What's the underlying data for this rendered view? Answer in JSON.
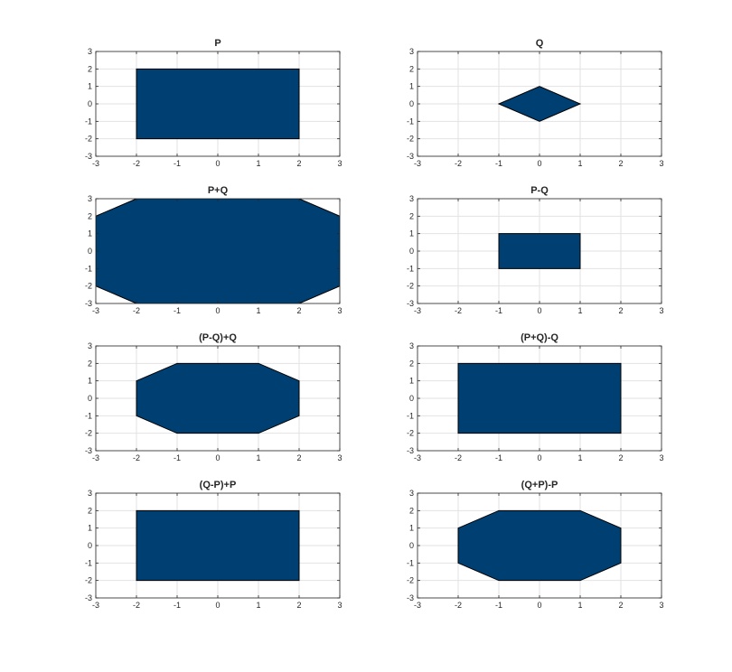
{
  "figure": {
    "background_color": "#ffffff",
    "fill_color": "#003f72",
    "edge_color": "#000000",
    "grid_color": "#e2e2e2",
    "axis_color": "#262626"
  },
  "chart_data": [
    {
      "type": "area",
      "title": "P",
      "xlim": [
        -3,
        3
      ],
      "ylim": [
        -3,
        3
      ],
      "xticks": [
        -3,
        -2,
        -1,
        0,
        1,
        2,
        3
      ],
      "yticks": [
        -3,
        -2,
        -1,
        0,
        1,
        2,
        3
      ],
      "grid": true,
      "polygon": [
        [
          -2,
          -2
        ],
        [
          2,
          -2
        ],
        [
          2,
          2
        ],
        [
          -2,
          2
        ]
      ]
    },
    {
      "type": "area",
      "title": "Q",
      "xlim": [
        -3,
        3
      ],
      "ylim": [
        -3,
        3
      ],
      "xticks": [
        -3,
        -2,
        -1,
        0,
        1,
        2,
        3
      ],
      "yticks": [
        -3,
        -2,
        -1,
        0,
        1,
        2,
        3
      ],
      "grid": true,
      "polygon": [
        [
          -1,
          0
        ],
        [
          0,
          -1
        ],
        [
          1,
          0
        ],
        [
          0,
          1
        ]
      ]
    },
    {
      "type": "area",
      "title": "P+Q",
      "xlim": [
        -3,
        3
      ],
      "ylim": [
        -3,
        3
      ],
      "xticks": [
        -3,
        -2,
        -1,
        0,
        1,
        2,
        3
      ],
      "yticks": [
        -3,
        -2,
        -1,
        0,
        1,
        2,
        3
      ],
      "grid": true,
      "polygon": [
        [
          -3,
          -2
        ],
        [
          -2,
          -3
        ],
        [
          2,
          -3
        ],
        [
          3,
          -2
        ],
        [
          3,
          2
        ],
        [
          2,
          3
        ],
        [
          -2,
          3
        ],
        [
          -3,
          2
        ]
      ]
    },
    {
      "type": "area",
      "title": "P-Q",
      "xlim": [
        -3,
        3
      ],
      "ylim": [
        -3,
        3
      ],
      "xticks": [
        -3,
        -2,
        -1,
        0,
        1,
        2,
        3
      ],
      "yticks": [
        -3,
        -2,
        -1,
        0,
        1,
        2,
        3
      ],
      "grid": true,
      "polygon": [
        [
          -1,
          -1
        ],
        [
          1,
          -1
        ],
        [
          1,
          1
        ],
        [
          -1,
          1
        ]
      ]
    },
    {
      "type": "area",
      "title": "(P-Q)+Q",
      "xlim": [
        -3,
        3
      ],
      "ylim": [
        -3,
        3
      ],
      "xticks": [
        -3,
        -2,
        -1,
        0,
        1,
        2,
        3
      ],
      "yticks": [
        -3,
        -2,
        -1,
        0,
        1,
        2,
        3
      ],
      "grid": true,
      "polygon": [
        [
          -2,
          -1
        ],
        [
          -1,
          -2
        ],
        [
          1,
          -2
        ],
        [
          2,
          -1
        ],
        [
          2,
          1
        ],
        [
          1,
          2
        ],
        [
          -1,
          2
        ],
        [
          -2,
          1
        ]
      ]
    },
    {
      "type": "area",
      "title": "(P+Q)-Q",
      "xlim": [
        -3,
        3
      ],
      "ylim": [
        -3,
        3
      ],
      "xticks": [
        -3,
        -2,
        -1,
        0,
        1,
        2,
        3
      ],
      "yticks": [
        -3,
        -2,
        -1,
        0,
        1,
        2,
        3
      ],
      "grid": true,
      "polygon": [
        [
          -2,
          -2
        ],
        [
          2,
          -2
        ],
        [
          2,
          2
        ],
        [
          -2,
          2
        ]
      ]
    },
    {
      "type": "area",
      "title": "(Q-P)+P",
      "xlim": [
        -3,
        3
      ],
      "ylim": [
        -3,
        3
      ],
      "xticks": [
        -3,
        -2,
        -1,
        0,
        1,
        2,
        3
      ],
      "yticks": [
        -3,
        -2,
        -1,
        0,
        1,
        2,
        3
      ],
      "grid": true,
      "polygon": [
        [
          -2,
          -2
        ],
        [
          2,
          -2
        ],
        [
          2,
          2
        ],
        [
          -2,
          2
        ]
      ]
    },
    {
      "type": "area",
      "title": "(Q+P)-P",
      "xlim": [
        -3,
        3
      ],
      "ylim": [
        -3,
        3
      ],
      "xticks": [
        -3,
        -2,
        -1,
        0,
        1,
        2,
        3
      ],
      "yticks": [
        -3,
        -2,
        -1,
        0,
        1,
        2,
        3
      ],
      "grid": true,
      "polygon": [
        [
          -2,
          -1
        ],
        [
          -1,
          -2
        ],
        [
          1,
          -2
        ],
        [
          2,
          -1
        ],
        [
          2,
          1
        ],
        [
          1,
          2
        ],
        [
          -1,
          2
        ],
        [
          -2,
          1
        ]
      ]
    }
  ]
}
